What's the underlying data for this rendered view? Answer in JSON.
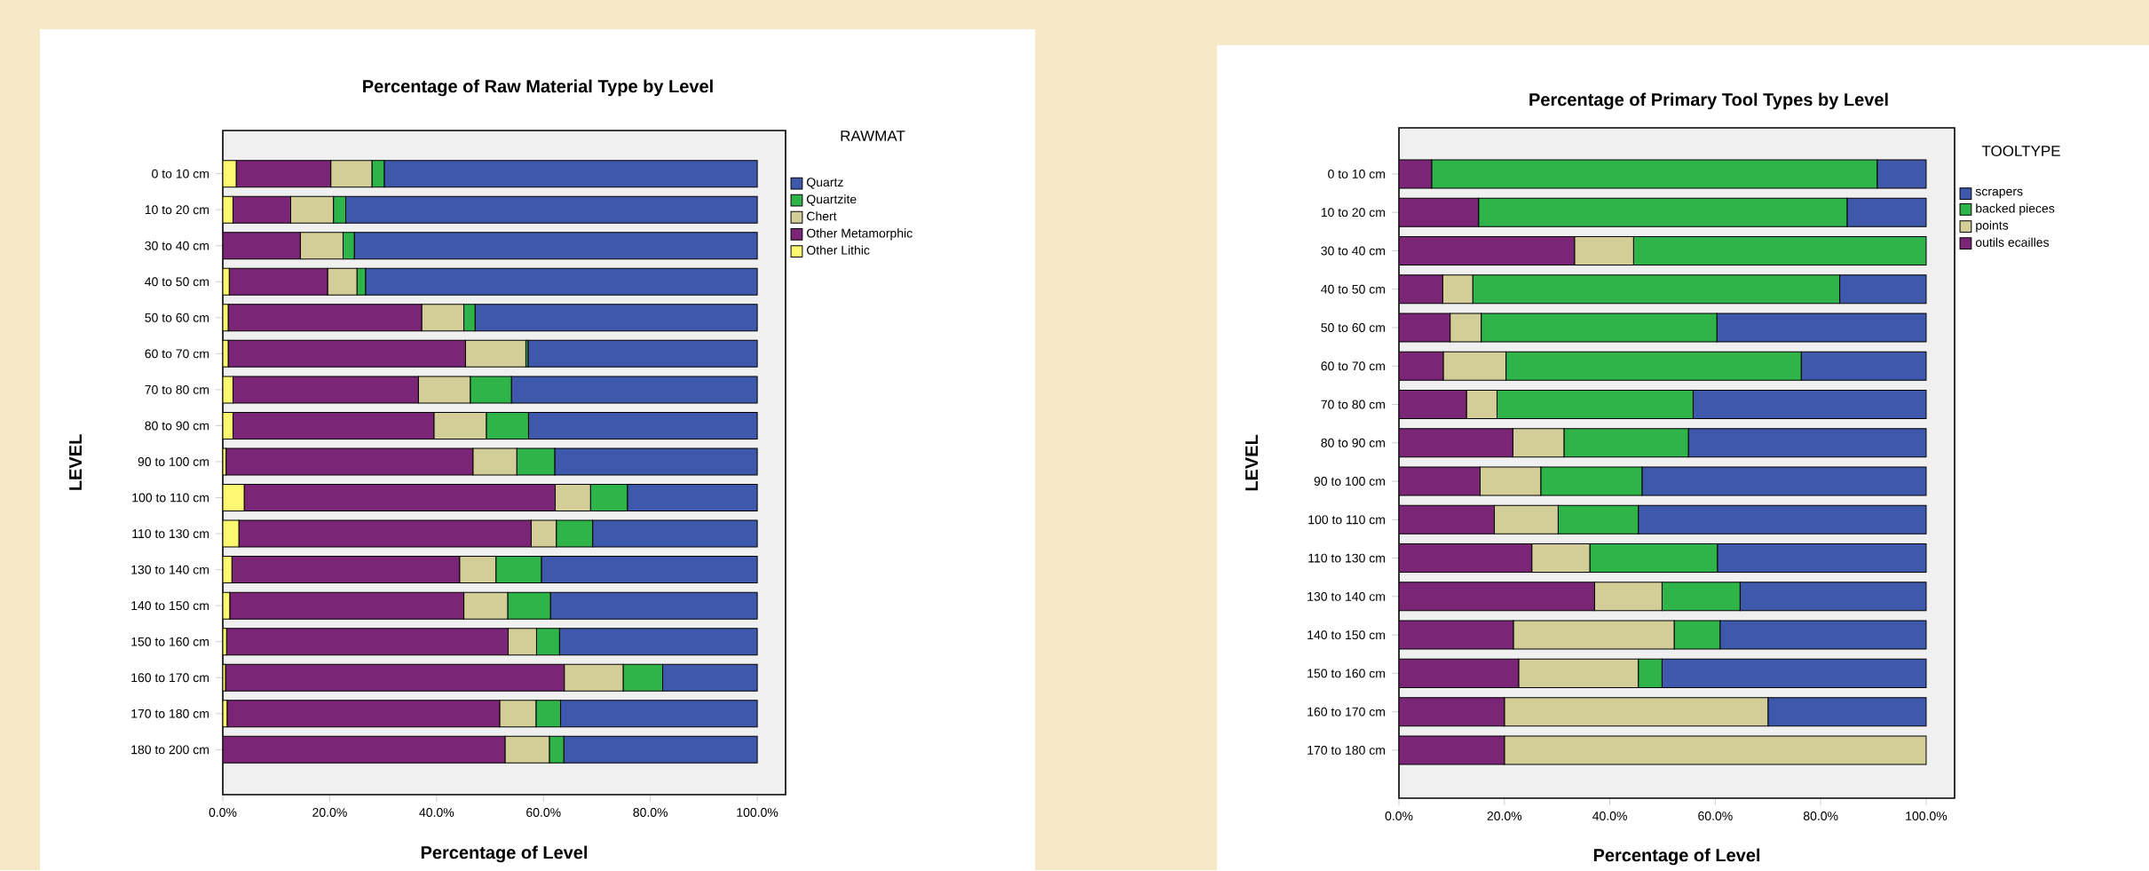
{
  "chart_data": [
    {
      "type": "bar",
      "orientation": "horizontal",
      "stacked": true,
      "title": "Percentage of Raw Material Type by Level",
      "xlabel": "Percentage of Level",
      "ylabel": "LEVEL",
      "legend_title": "RAWMAT",
      "legend": "right",
      "categories": [
        "0 to 10 cm",
        "10 to 20 cm",
        "30 to 40 cm",
        "40 to 50 cm",
        "50 to 60 cm",
        "60 to 70 cm",
        "70 to 80 cm",
        "80 to 90 cm",
        "90 to 100 cm",
        "100 to 110 cm",
        "110 to 130 cm",
        "130 to 140 cm",
        "140 to 150 cm",
        "150 to 160 cm",
        "160 to 170 cm",
        "170 to 180 cm",
        "180 to 200 cm"
      ],
      "series": [
        {
          "name": "Other Lithic",
          "color": "#fcf870",
          "values": [
            2.5,
            1.9,
            0,
            1.2,
            1.0,
            1.0,
            1.9,
            1.9,
            0.6,
            4.0,
            3.0,
            1.7,
            1.3,
            0.7,
            0.5,
            0.8,
            0
          ]
        },
        {
          "name": "Other Metamorphic",
          "color": "#7b2577",
          "values": [
            17.7,
            10.8,
            14.5,
            18.4,
            36.2,
            44.4,
            34.7,
            37.6,
            46.2,
            58.2,
            54.7,
            42.6,
            43.8,
            52.7,
            63.4,
            51.0,
            52.8
          ]
        },
        {
          "name": "Chert",
          "color": "#d3ce97",
          "values": [
            7.7,
            8.0,
            8.0,
            5.5,
            7.9,
            11.3,
            9.7,
            9.8,
            8.2,
            6.6,
            4.7,
            6.8,
            8.2,
            5.3,
            11.0,
            6.8,
            8.3
          ]
        },
        {
          "name": "Quartzite",
          "color": "#2fb44a",
          "values": [
            2.3,
            2.3,
            2.1,
            1.6,
            2.1,
            0.4,
            7.7,
            7.9,
            7.1,
            6.9,
            6.8,
            8.5,
            8.0,
            4.3,
            7.4,
            4.6,
            2.7
          ]
        },
        {
          "name": "Quartz",
          "color": "#3e58ac",
          "values": [
            69.8,
            77.0,
            75.4,
            73.3,
            52.8,
            42.9,
            46.0,
            42.8,
            37.9,
            24.3,
            30.8,
            40.4,
            38.7,
            37.0,
            17.7,
            36.8,
            36.2
          ]
        }
      ],
      "xlim": [
        0,
        105.3
      ],
      "xticks": [
        {
          "value": 0,
          "label": "0.0%"
        },
        {
          "value": 20,
          "label": "20.0%"
        },
        {
          "value": 40,
          "label": "40.0%"
        },
        {
          "value": 60,
          "label": "60.0%"
        },
        {
          "value": 80,
          "label": "80.0%"
        },
        {
          "value": 100,
          "label": "100.0%"
        }
      ]
    },
    {
      "type": "bar",
      "orientation": "horizontal",
      "stacked": true,
      "title": "Percentage of Primary Tool Types by Level",
      "xlabel": "Percentage of Level",
      "ylabel": "LEVEL",
      "legend_title": "TOOLTYPE",
      "legend": "right",
      "categories": [
        "0 to 10 cm",
        "10 to 20 cm",
        "30 to 40 cm",
        "40 to 50 cm",
        "50 to 60 cm",
        "60 to 70 cm",
        "70 to 80 cm",
        "80 to 90 cm",
        "90 to 100 cm",
        "100 to 110 cm",
        "110 to 130 cm",
        "130 to 140 cm",
        "140 to 150 cm",
        "150 to 160 cm",
        "160 to 170 cm",
        "170 to 180 cm"
      ],
      "series": [
        {
          "name": "outils ecailles",
          "color": "#7b2577",
          "values": [
            6.2,
            15.1,
            33.3,
            8.3,
            9.7,
            8.4,
            12.8,
            21.6,
            15.4,
            18.1,
            25.2,
            37.1,
            21.7,
            22.7,
            20.0,
            20.0
          ]
        },
        {
          "name": "points",
          "color": "#d3ce97",
          "values": [
            0,
            0,
            11.2,
            5.7,
            5.9,
            11.9,
            5.8,
            9.7,
            11.5,
            12.1,
            11.0,
            12.8,
            30.5,
            22.7,
            50.0,
            80.0
          ]
        },
        {
          "name": "backed pieces",
          "color": "#2fb44a",
          "values": [
            84.5,
            69.9,
            55.5,
            69.6,
            44.7,
            56.0,
            37.2,
            23.6,
            19.2,
            15.2,
            24.2,
            14.8,
            8.7,
            4.5,
            0,
            0
          ]
        },
        {
          "name": "scrapers",
          "color": "#3e58ac",
          "values": [
            9.3,
            15.0,
            0,
            16.4,
            39.7,
            23.7,
            44.2,
            45.1,
            53.9,
            54.6,
            39.6,
            35.3,
            39.1,
            50.1,
            30.0,
            0
          ]
        }
      ],
      "xlim": [
        0,
        105.4
      ],
      "xticks": [
        {
          "value": 0,
          "label": "0.0%"
        },
        {
          "value": 20,
          "label": "20.0%"
        },
        {
          "value": 40,
          "label": "40.0%"
        },
        {
          "value": 60,
          "label": "60.0%"
        },
        {
          "value": 80,
          "label": "80.0%"
        },
        {
          "value": 100,
          "label": "100.0%"
        }
      ]
    }
  ]
}
